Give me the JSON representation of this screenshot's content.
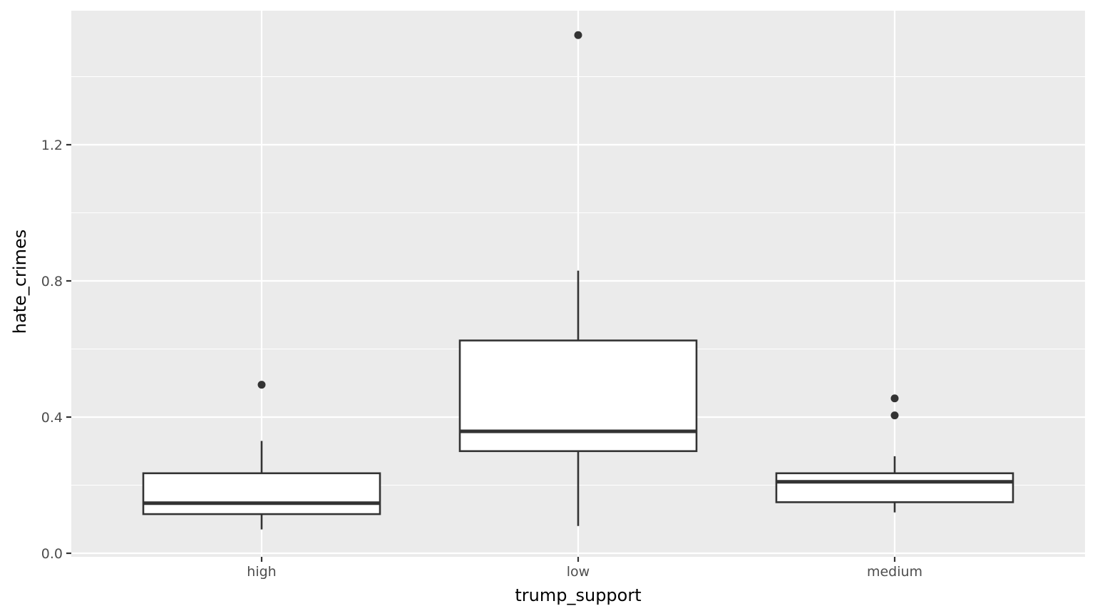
{
  "chart_data": {
    "type": "boxplot",
    "title": "",
    "xlabel": "trump_support",
    "ylabel": "hate_crimes",
    "categories": [
      "high",
      "low",
      "medium"
    ],
    "ylim": [
      0.0,
      1.6
    ],
    "y_ticks": [
      0.0,
      0.4,
      0.8,
      1.2
    ],
    "y_tick_labels": [
      "0.0",
      "0.4",
      "0.8",
      "1.2"
    ],
    "grid": true,
    "boxes": [
      {
        "category": "high",
        "whisker_low": 0.07,
        "q1": 0.115,
        "median": 0.147,
        "q3": 0.235,
        "whisker_high": 0.33,
        "outliers": [
          0.495
        ]
      },
      {
        "category": "low",
        "whisker_low": 0.08,
        "q1": 0.3,
        "median": 0.358,
        "q3": 0.625,
        "whisker_high": 0.83,
        "outliers": [
          1.522
        ]
      },
      {
        "category": "medium",
        "whisker_low": 0.12,
        "q1": 0.15,
        "median": 0.21,
        "q3": 0.235,
        "whisker_high": 0.285,
        "outliers": [
          0.455,
          0.405
        ]
      }
    ]
  },
  "colors": {
    "panel_background": "#ebebeb",
    "grid_major": "#ffffff",
    "box_fill": "#ffffff",
    "box_stroke": "#333333",
    "tick_label": "#4d4d4d",
    "axis_title": "#000000"
  }
}
